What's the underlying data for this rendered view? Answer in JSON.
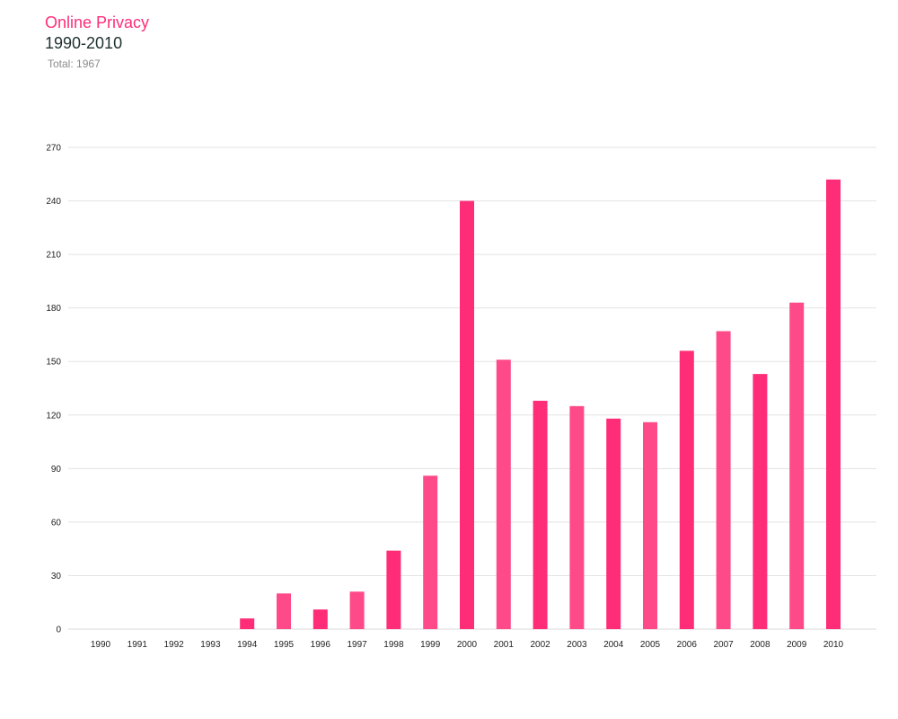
{
  "header": {
    "title": "Online Privacy",
    "subtitle": "1990-2010",
    "total": "Total: 1967"
  },
  "colors": {
    "title": "#ff2d78",
    "bars": [
      "#ff2d78",
      "#ff4a8a"
    ]
  },
  "chart_data": {
    "type": "bar",
    "categories": [
      "1990",
      "1991",
      "1992",
      "1993",
      "1994",
      "1995",
      "1996",
      "1997",
      "1998",
      "1999",
      "2000",
      "2001",
      "2002",
      "2003",
      "2004",
      "2005",
      "2006",
      "2007",
      "2008",
      "2009",
      "2010"
    ],
    "values": [
      0,
      0,
      0,
      0,
      6,
      20,
      11,
      21,
      44,
      86,
      240,
      151,
      128,
      125,
      118,
      116,
      156,
      167,
      143,
      183,
      252
    ],
    "ylim": [
      0,
      270
    ],
    "yticks": [
      0,
      30,
      60,
      90,
      120,
      150,
      180,
      210,
      240,
      270
    ],
    "grid": true,
    "legend": "none"
  }
}
